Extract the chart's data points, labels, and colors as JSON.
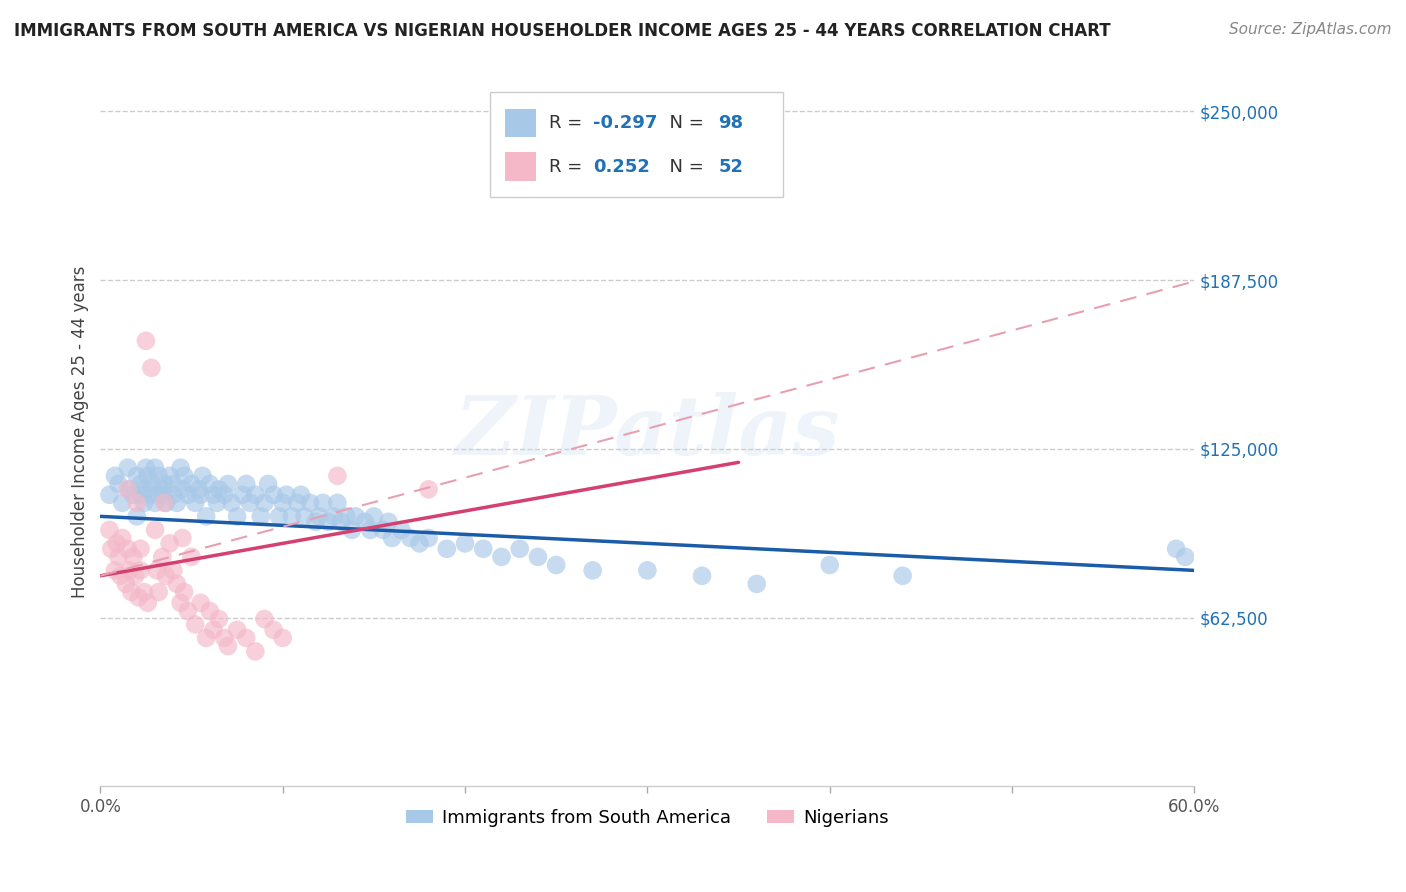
{
  "title": "IMMIGRANTS FROM SOUTH AMERICA VS NIGERIAN HOUSEHOLDER INCOME AGES 25 - 44 YEARS CORRELATION CHART",
  "source": "Source: ZipAtlas.com",
  "ylabel": "Householder Income Ages 25 - 44 years",
  "xlim": [
    0.0,
    0.6
  ],
  "ylim": [
    0,
    262500
  ],
  "yticks": [
    62500,
    125000,
    187500,
    250000
  ],
  "ytick_labels": [
    "$62,500",
    "$125,000",
    "$187,500",
    "$250,000"
  ],
  "xticks": [
    0.0,
    0.1,
    0.2,
    0.3,
    0.4,
    0.5,
    0.6
  ],
  "xtick_labels": [
    "0.0%",
    "",
    "",
    "",
    "",
    "",
    "60.0%"
  ],
  "blue_color": "#a8c8e8",
  "pink_color": "#f4b8c8",
  "blue_line_color": "#1a5ca8",
  "pink_line_color": "#d44070",
  "pink_dash_color": "#e8a0b0",
  "blue_scatter_x": [
    0.005,
    0.008,
    0.01,
    0.012,
    0.015,
    0.016,
    0.018,
    0.02,
    0.02,
    0.022,
    0.022,
    0.024,
    0.025,
    0.025,
    0.026,
    0.028,
    0.028,
    0.03,
    0.03,
    0.032,
    0.032,
    0.034,
    0.035,
    0.035,
    0.036,
    0.038,
    0.04,
    0.04,
    0.042,
    0.044,
    0.045,
    0.046,
    0.048,
    0.05,
    0.052,
    0.054,
    0.055,
    0.056,
    0.058,
    0.06,
    0.062,
    0.064,
    0.065,
    0.068,
    0.07,
    0.072,
    0.075,
    0.078,
    0.08,
    0.082,
    0.085,
    0.088,
    0.09,
    0.092,
    0.095,
    0.098,
    0.1,
    0.102,
    0.105,
    0.108,
    0.11,
    0.112,
    0.115,
    0.118,
    0.12,
    0.122,
    0.125,
    0.128,
    0.13,
    0.132,
    0.135,
    0.138,
    0.14,
    0.145,
    0.148,
    0.15,
    0.155,
    0.158,
    0.16,
    0.165,
    0.17,
    0.175,
    0.18,
    0.19,
    0.2,
    0.21,
    0.22,
    0.23,
    0.24,
    0.25,
    0.27,
    0.3,
    0.33,
    0.36,
    0.4,
    0.44,
    0.59,
    0.595
  ],
  "blue_scatter_y": [
    108000,
    115000,
    112000,
    105000,
    118000,
    110000,
    108000,
    115000,
    100000,
    112000,
    108000,
    105000,
    118000,
    110000,
    115000,
    108000,
    112000,
    105000,
    118000,
    108000,
    115000,
    110000,
    112000,
    108000,
    105000,
    115000,
    112000,
    108000,
    105000,
    118000,
    110000,
    115000,
    108000,
    112000,
    105000,
    110000,
    108000,
    115000,
    100000,
    112000,
    108000,
    105000,
    110000,
    108000,
    112000,
    105000,
    100000,
    108000,
    112000,
    105000,
    108000,
    100000,
    105000,
    112000,
    108000,
    100000,
    105000,
    108000,
    100000,
    105000,
    108000,
    100000,
    105000,
    98000,
    100000,
    105000,
    98000,
    100000,
    105000,
    98000,
    100000,
    95000,
    100000,
    98000,
    95000,
    100000,
    95000,
    98000,
    92000,
    95000,
    92000,
    90000,
    92000,
    88000,
    90000,
    88000,
    85000,
    88000,
    85000,
    82000,
    80000,
    80000,
    78000,
    75000,
    82000,
    78000,
    88000,
    85000
  ],
  "pink_scatter_x": [
    0.005,
    0.006,
    0.008,
    0.009,
    0.01,
    0.011,
    0.012,
    0.014,
    0.015,
    0.015,
    0.016,
    0.017,
    0.018,
    0.019,
    0.02,
    0.021,
    0.022,
    0.022,
    0.024,
    0.025,
    0.026,
    0.028,
    0.03,
    0.031,
    0.032,
    0.034,
    0.035,
    0.036,
    0.038,
    0.04,
    0.042,
    0.044,
    0.045,
    0.046,
    0.048,
    0.05,
    0.052,
    0.055,
    0.058,
    0.06,
    0.062,
    0.065,
    0.068,
    0.07,
    0.075,
    0.08,
    0.085,
    0.09,
    0.095,
    0.1,
    0.13,
    0.18
  ],
  "pink_scatter_y": [
    95000,
    88000,
    80000,
    90000,
    85000,
    78000,
    92000,
    75000,
    110000,
    88000,
    80000,
    72000,
    85000,
    78000,
    105000,
    70000,
    88000,
    80000,
    72000,
    165000,
    68000,
    155000,
    95000,
    80000,
    72000,
    85000,
    105000,
    78000,
    90000,
    80000,
    75000,
    68000,
    92000,
    72000,
    65000,
    85000,
    60000,
    68000,
    55000,
    65000,
    58000,
    62000,
    55000,
    52000,
    58000,
    55000,
    50000,
    62000,
    58000,
    55000,
    115000,
    110000
  ],
  "watermark": "ZIPatlas",
  "background_color": "#ffffff",
  "grid_color": "#cccccc",
  "title_fontsize": 12,
  "axis_label_fontsize": 12,
  "tick_fontsize": 12,
  "source_fontsize": 11,
  "legend_r1_label": "R = ",
  "legend_r1_val": "-0.297",
  "legend_n1_label": "  N = ",
  "legend_n1_val": "98",
  "legend_r2_label": "R =  ",
  "legend_r2_val": "0.252",
  "legend_n2_label": "  N = ",
  "legend_n2_val": "52",
  "legend_color": "#2171b5"
}
